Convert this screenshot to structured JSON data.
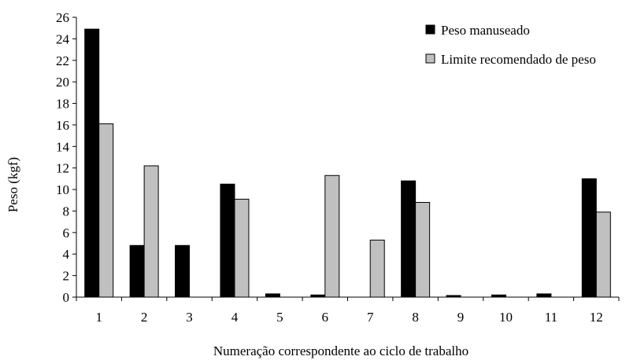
{
  "chart_data": {
    "type": "bar",
    "xlabel": "Numeração correspondente ao ciclo de trabalho",
    "ylabel": "Peso (kgf)",
    "ylim": [
      0,
      26
    ],
    "yticks": [
      "0",
      "2",
      "4",
      "6",
      "8",
      "10",
      "12",
      "14",
      "16",
      "18",
      "20",
      "22",
      "24",
      "26"
    ],
    "categories": [
      "1",
      "2",
      "3",
      "4",
      "5",
      "6",
      "7",
      "8",
      "9",
      "10",
      "11",
      "12"
    ],
    "grid": false,
    "legend_position": "top-right",
    "series": [
      {
        "name": "Peso manuseado",
        "color": "#000000",
        "values": [
          24.9,
          4.8,
          4.8,
          10.5,
          0.3,
          0.2,
          0,
          10.8,
          0.15,
          0.2,
          0.3,
          11.0
        ]
      },
      {
        "name": "Limite recomendado de peso",
        "color": "#c0c0c0",
        "values": [
          16.1,
          12.2,
          0,
          9.1,
          0,
          11.3,
          5.3,
          8.8,
          0,
          0,
          0,
          7.9
        ]
      }
    ]
  }
}
